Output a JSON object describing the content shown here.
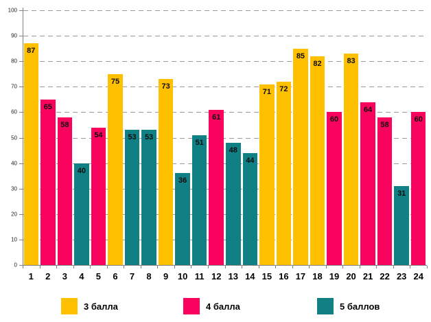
{
  "chart_data": {
    "type": "bar",
    "title": "",
    "xlabel": "",
    "ylabel": "",
    "categories": [
      "1",
      "2",
      "3",
      "4",
      "5",
      "6",
      "7",
      "8",
      "9",
      "10",
      "11",
      "12",
      "13",
      "14",
      "15",
      "16",
      "17",
      "18",
      "19",
      "20",
      "21",
      "22",
      "23",
      "24"
    ],
    "values": [
      87,
      65,
      58,
      40,
      54,
      75,
      53,
      53,
      73,
      36,
      51,
      61,
      48,
      44,
      71,
      72,
      85,
      82,
      60,
      83,
      64,
      58,
      31,
      60
    ],
    "groups": [
      "3 балла",
      "4 балла",
      "4 балла",
      "5 баллов",
      "4 балла",
      "3 балла",
      "5 баллов",
      "5 баллов",
      "3 балла",
      "5 баллов",
      "5 баллов",
      "4 балла",
      "5 баллов",
      "5 баллов",
      "3 балла",
      "3 балла",
      "3 балла",
      "3 балла",
      "4 балла",
      "3 балла",
      "4 балла",
      "4 балла",
      "5 баллов",
      "4 балла"
    ],
    "group_colors": {
      "3 балла": "#FFC000",
      "4 балла": "#F8035E",
      "5 баллов": "#108084"
    },
    "value_labels_visible": true,
    "ylim": [
      0,
      100
    ],
    "ytick_step": 10,
    "ytick_labels": [
      "0",
      "10",
      "20",
      "30",
      "40",
      "50",
      "60",
      "70",
      "80",
      "90",
      "100"
    ],
    "grid": "horizontal-dashed",
    "legend_position": "bottom",
    "legend": [
      {
        "label": "3 балла",
        "color": "#FFC000"
      },
      {
        "label": "4 балла",
        "color": "#F8035E"
      },
      {
        "label": "5 баллов",
        "color": "#108084"
      }
    ]
  }
}
